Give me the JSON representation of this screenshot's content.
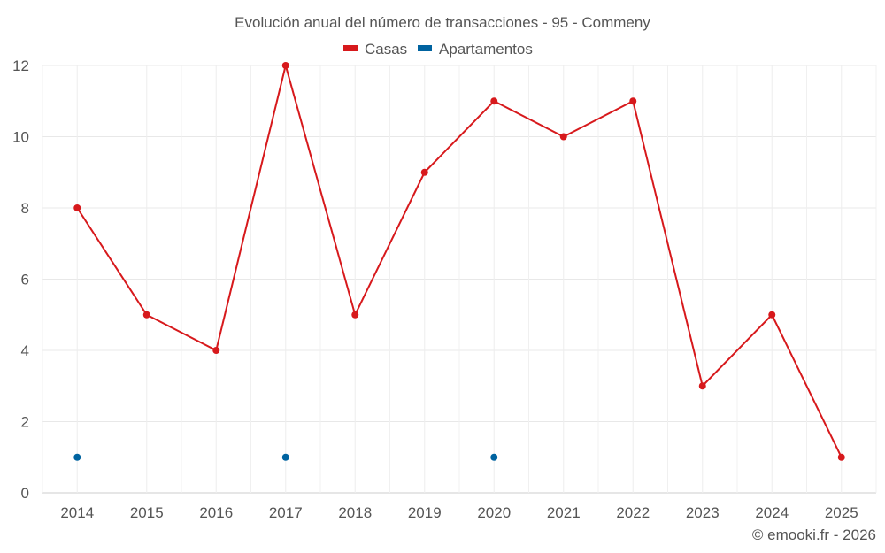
{
  "chart_data": {
    "type": "line",
    "title": "Evolución anual del número de transacciones - 95 - Commeny",
    "categories": [
      "2014",
      "2015",
      "2016",
      "2017",
      "2018",
      "2019",
      "2020",
      "2021",
      "2022",
      "2023",
      "2024",
      "2025"
    ],
    "series": [
      {
        "name": "Casas",
        "color": "#d7191c",
        "values": [
          8,
          5,
          4,
          12,
          5,
          9,
          11,
          10,
          11,
          3,
          5,
          1
        ]
      },
      {
        "name": "Apartamentos",
        "color": "#0063a0",
        "values": [
          1,
          null,
          null,
          1,
          null,
          null,
          1,
          null,
          null,
          null,
          null,
          null
        ]
      }
    ],
    "ylim": [
      0,
      12
    ],
    "yticks": [
      0,
      2,
      4,
      6,
      8,
      10,
      12
    ],
    "grid": true,
    "legend": "top-center",
    "xlabel": "",
    "ylabel": ""
  },
  "credit": "© emooki.fr - 2026"
}
